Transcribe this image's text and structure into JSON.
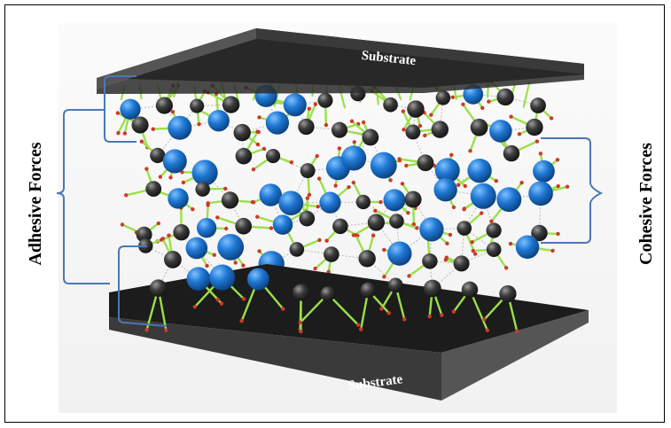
{
  "substrate_top_label": "Substrate",
  "substrate_bottom_label": "Substrate",
  "adhesive_label": "Adhesive Forces",
  "cohesive_label": "Cohesive Forces",
  "colors": {
    "substrate_dark": "#1c1c1c",
    "substrate_face": "#3a3a3a",
    "substrate_edge": "#7a7a7a",
    "brace": "#4a78b8",
    "oxygen_atom": "#3a3a3a",
    "water_atom": "#1f78d4",
    "bond": "#9be04a",
    "hydrogen": "#cc3a2a"
  }
}
